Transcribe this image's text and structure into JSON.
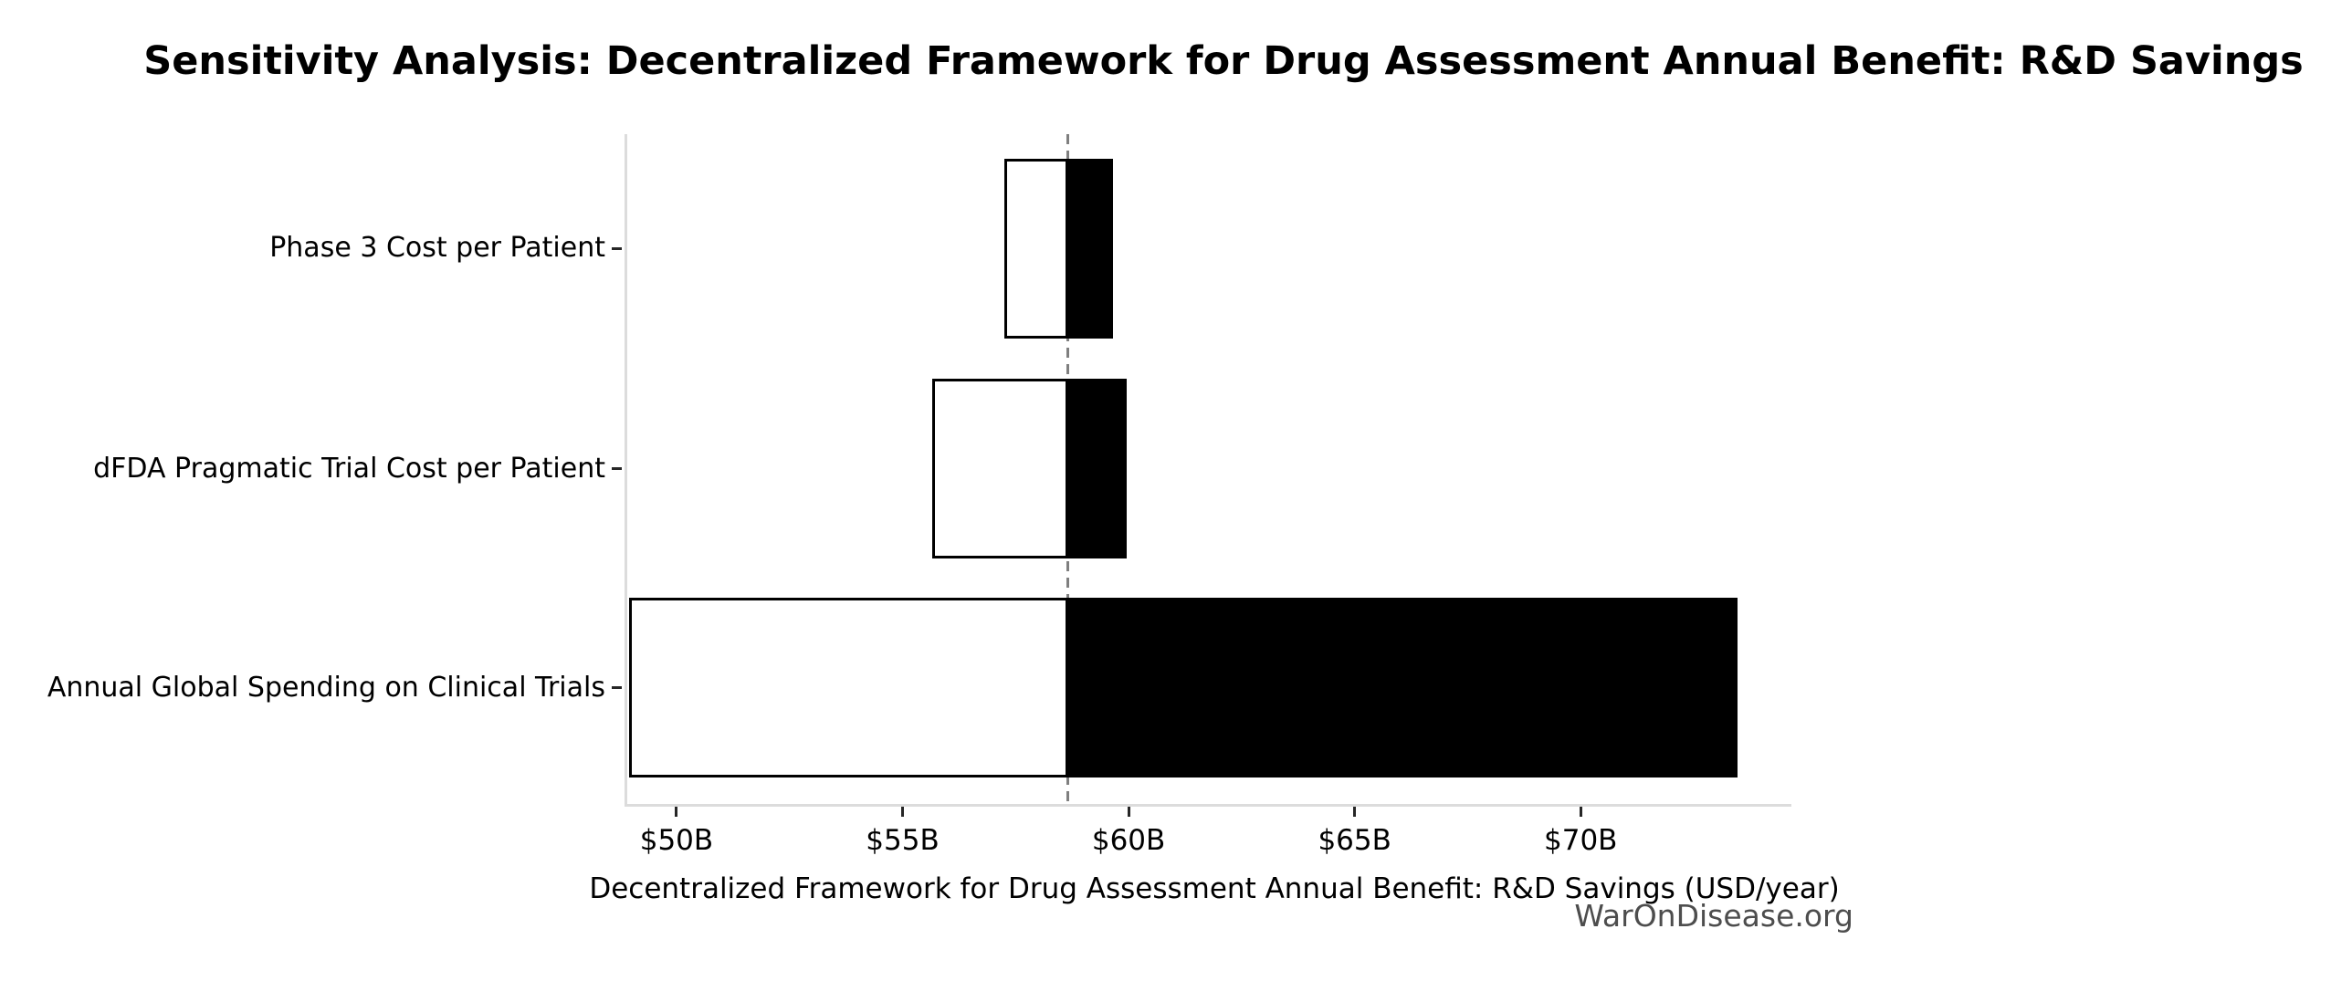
{
  "chart_data": {
    "type": "bar",
    "variant": "tornado-sensitivity",
    "title": "Sensitivity Analysis: Decentralized Framework for Drug Assessment Annual Benefit: R&D Savings",
    "xlabel": "Decentralized Framework for Drug Assessment Annual Benefit: R&D Savings (USD/year)",
    "ylabel": "",
    "categories": [
      "Phase 3 Cost per Patient",
      "dFDA Pragmatic Trial Cost per Patient",
      "Annual Global Spending on Clinical Trials"
    ],
    "baseline_value": 58.6,
    "bars": [
      {
        "label": "Phase 3 Cost per Patient",
        "low": 57.2,
        "high": 59.6
      },
      {
        "label": "dFDA Pragmatic Trial Cost per Patient",
        "low": 55.6,
        "high": 59.9
      },
      {
        "label": "Annual Global Spending on Clinical Trials",
        "low": 48.9,
        "high": 73.4
      }
    ],
    "x_ticks": [
      {
        "value": 50,
        "label": "$50B"
      },
      {
        "value": 55,
        "label": "$55B"
      },
      {
        "value": 60,
        "label": "$60B"
      },
      {
        "value": 65,
        "label": "$65B"
      },
      {
        "value": 70,
        "label": "$70B"
      }
    ],
    "xlim": [
      48.85,
      74.6
    ],
    "grid": false,
    "legend": false,
    "colors": {
      "low_fill": "#ffffff",
      "high_fill": "#000000",
      "bar_border": "#000000",
      "baseline_line": "#7f7f7f",
      "spine": "#dcdcdc",
      "tick_mark": "#262626",
      "text": "#000000",
      "watermark": "#4d4d4d"
    }
  },
  "watermark": {
    "text": "WarOnDisease.org"
  }
}
